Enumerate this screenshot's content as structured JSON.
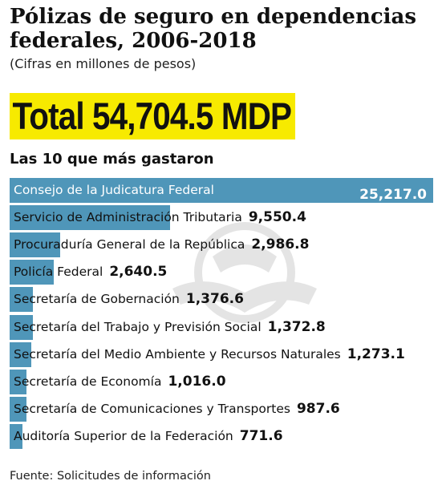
{
  "header": {
    "title": "Pólizas de seguro en dependencias federales, 2006-2018",
    "subtitle": "(Cifras en millones de pesos)",
    "total": "Total 54,704.5 MDP",
    "section": "Las 10 que más gastaron"
  },
  "footer": {
    "source": "Fuente: Solicitudes de información"
  },
  "colors": {
    "bar": "#4f96b9",
    "highlight": "#f7ea00"
  },
  "chart_data": {
    "type": "bar",
    "orientation": "horizontal",
    "categories": [
      "Consejo de la Judicatura Federal",
      "Servicio de Administración Tributaria",
      "Procuraduría General de la República",
      "Policía Federal",
      "Secretaría de Gobernación",
      "Secretaría del Trabajo y Previsión Social",
      "Secretaría del Medio Ambiente y Recursos Naturales",
      "Secretaría de Economía",
      "Secretaría de Comunicaciones y Transportes",
      "Auditoría Superior de la Federación"
    ],
    "values": [
      25217.0,
      9550.4,
      2986.8,
      2640.5,
      1376.6,
      1372.8,
      1273.1,
      1016.0,
      987.6,
      771.6
    ],
    "value_labels": [
      "25,217.0",
      "9,550.4",
      "2,986.8",
      "2,640.5",
      "1,376.6",
      "1,372.8",
      "1,273.1",
      "1,016.0",
      "987.6",
      "771.6"
    ],
    "grid": false,
    "legend": "none"
  }
}
